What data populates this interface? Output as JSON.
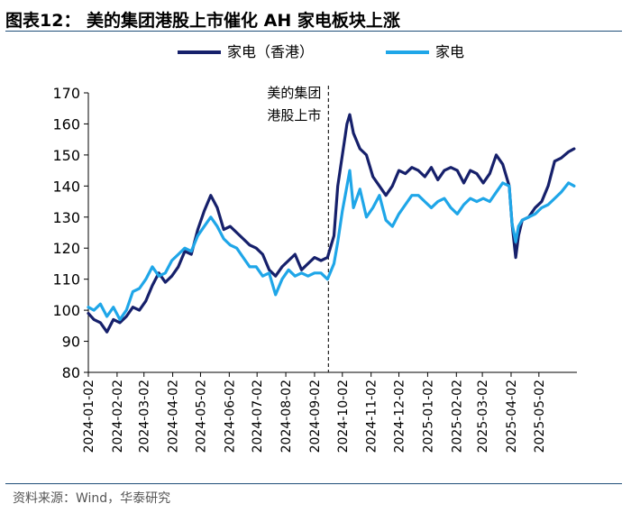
{
  "figure": {
    "title": "图表12：  美的集团港股上市催化 AH 家电板块上涨",
    "source": "资料来源：Wind，华泰研究"
  },
  "chart_data": {
    "type": "line",
    "ylim": [
      80,
      170
    ],
    "yticks": [
      80,
      90,
      100,
      110,
      120,
      130,
      140,
      150,
      160,
      170
    ],
    "xlim": [
      "2024-01-02",
      "2025-06-12"
    ],
    "xticks": [
      "2024-01-02",
      "2024-02-02",
      "2024-03-02",
      "2024-04-02",
      "2024-05-02",
      "2024-06-02",
      "2024-07-02",
      "2024-08-02",
      "2024-09-02",
      "2024-10-02",
      "2024-11-02",
      "2024-12-02",
      "2025-01-02",
      "2025-02-02",
      "2025-03-02",
      "2025-04-02",
      "2025-05-02"
    ],
    "legend_position": "top",
    "grid": false,
    "annotation": {
      "x": "2024-09-17",
      "lines": [
        "美的集团",
        "港股上市"
      ]
    },
    "series": [
      {
        "name": "家电（香港）",
        "color": "#16206b",
        "points": [
          [
            "2024-01-02",
            99
          ],
          [
            "2024-01-08",
            97
          ],
          [
            "2024-01-15",
            96
          ],
          [
            "2024-01-22",
            93
          ],
          [
            "2024-01-29",
            97
          ],
          [
            "2024-02-05",
            96
          ],
          [
            "2024-02-12",
            98
          ],
          [
            "2024-02-19",
            101
          ],
          [
            "2024-02-26",
            100
          ],
          [
            "2024-03-04",
            103
          ],
          [
            "2024-03-11",
            108
          ],
          [
            "2024-03-18",
            112
          ],
          [
            "2024-03-25",
            109
          ],
          [
            "2024-04-01",
            111
          ],
          [
            "2024-04-08",
            114
          ],
          [
            "2024-04-15",
            119
          ],
          [
            "2024-04-22",
            118
          ],
          [
            "2024-04-29",
            126
          ],
          [
            "2024-05-06",
            132
          ],
          [
            "2024-05-13",
            137
          ],
          [
            "2024-05-20",
            133
          ],
          [
            "2024-05-27",
            126
          ],
          [
            "2024-06-03",
            127
          ],
          [
            "2024-06-10",
            125
          ],
          [
            "2024-06-17",
            123
          ],
          [
            "2024-06-24",
            121
          ],
          [
            "2024-07-01",
            120
          ],
          [
            "2024-07-08",
            118
          ],
          [
            "2024-07-15",
            113
          ],
          [
            "2024-07-22",
            111
          ],
          [
            "2024-07-29",
            114
          ],
          [
            "2024-08-05",
            116
          ],
          [
            "2024-08-12",
            118
          ],
          [
            "2024-08-19",
            113
          ],
          [
            "2024-08-26",
            115
          ],
          [
            "2024-09-02",
            117
          ],
          [
            "2024-09-09",
            116
          ],
          [
            "2024-09-16",
            117
          ],
          [
            "2024-09-23",
            124
          ],
          [
            "2024-09-27",
            140
          ],
          [
            "2024-10-02",
            150
          ],
          [
            "2024-10-07",
            160
          ],
          [
            "2024-10-10",
            163
          ],
          [
            "2024-10-14",
            157
          ],
          [
            "2024-10-21",
            152
          ],
          [
            "2024-10-28",
            150
          ],
          [
            "2024-11-04",
            143
          ],
          [
            "2024-11-11",
            140
          ],
          [
            "2024-11-18",
            137
          ],
          [
            "2024-11-25",
            140
          ],
          [
            "2024-12-02",
            145
          ],
          [
            "2024-12-09",
            144
          ],
          [
            "2024-12-16",
            146
          ],
          [
            "2024-12-23",
            145
          ],
          [
            "2024-12-30",
            143
          ],
          [
            "2025-01-06",
            146
          ],
          [
            "2025-01-13",
            142
          ],
          [
            "2025-01-20",
            145
          ],
          [
            "2025-01-27",
            146
          ],
          [
            "2025-02-03",
            145
          ],
          [
            "2025-02-10",
            141
          ],
          [
            "2025-02-17",
            145
          ],
          [
            "2025-02-24",
            144
          ],
          [
            "2025-03-03",
            141
          ],
          [
            "2025-03-10",
            144
          ],
          [
            "2025-03-17",
            150
          ],
          [
            "2025-03-24",
            147
          ],
          [
            "2025-03-31",
            140
          ],
          [
            "2025-04-03",
            128
          ],
          [
            "2025-04-07",
            117
          ],
          [
            "2025-04-10",
            124
          ],
          [
            "2025-04-14",
            129
          ],
          [
            "2025-04-21",
            130
          ],
          [
            "2025-04-28",
            133
          ],
          [
            "2025-05-05",
            135
          ],
          [
            "2025-05-12",
            140
          ],
          [
            "2025-05-19",
            148
          ],
          [
            "2025-05-26",
            149
          ],
          [
            "2025-06-03",
            151
          ],
          [
            "2025-06-09",
            152
          ]
        ]
      },
      {
        "name": "家电",
        "color": "#1fa6e8",
        "points": [
          [
            "2024-01-02",
            101
          ],
          [
            "2024-01-08",
            100
          ],
          [
            "2024-01-15",
            102
          ],
          [
            "2024-01-22",
            98
          ],
          [
            "2024-01-29",
            101
          ],
          [
            "2024-02-05",
            97
          ],
          [
            "2024-02-12",
            100
          ],
          [
            "2024-02-19",
            106
          ],
          [
            "2024-02-26",
            107
          ],
          [
            "2024-03-04",
            110
          ],
          [
            "2024-03-11",
            114
          ],
          [
            "2024-03-18",
            111
          ],
          [
            "2024-03-25",
            112
          ],
          [
            "2024-04-01",
            116
          ],
          [
            "2024-04-08",
            118
          ],
          [
            "2024-04-15",
            120
          ],
          [
            "2024-04-22",
            119
          ],
          [
            "2024-04-29",
            124
          ],
          [
            "2024-05-06",
            127
          ],
          [
            "2024-05-13",
            130
          ],
          [
            "2024-05-20",
            127
          ],
          [
            "2024-05-27",
            123
          ],
          [
            "2024-06-03",
            121
          ],
          [
            "2024-06-10",
            120
          ],
          [
            "2024-06-17",
            117
          ],
          [
            "2024-06-24",
            114
          ],
          [
            "2024-07-01",
            114
          ],
          [
            "2024-07-08",
            111
          ],
          [
            "2024-07-15",
            112
          ],
          [
            "2024-07-22",
            105
          ],
          [
            "2024-07-29",
            110
          ],
          [
            "2024-08-05",
            113
          ],
          [
            "2024-08-12",
            111
          ],
          [
            "2024-08-19",
            112
          ],
          [
            "2024-08-26",
            111
          ],
          [
            "2024-09-02",
            112
          ],
          [
            "2024-09-09",
            112
          ],
          [
            "2024-09-16",
            110
          ],
          [
            "2024-09-23",
            115
          ],
          [
            "2024-09-27",
            122
          ],
          [
            "2024-10-02",
            132
          ],
          [
            "2024-10-07",
            140
          ],
          [
            "2024-10-10",
            145
          ],
          [
            "2024-10-14",
            133
          ],
          [
            "2024-10-21",
            139
          ],
          [
            "2024-10-28",
            130
          ],
          [
            "2024-11-04",
            133
          ],
          [
            "2024-11-11",
            137
          ],
          [
            "2024-11-18",
            129
          ],
          [
            "2024-11-25",
            127
          ],
          [
            "2024-12-02",
            131
          ],
          [
            "2024-12-09",
            134
          ],
          [
            "2024-12-16",
            137
          ],
          [
            "2024-12-23",
            137
          ],
          [
            "2024-12-30",
            135
          ],
          [
            "2025-01-06",
            133
          ],
          [
            "2025-01-13",
            135
          ],
          [
            "2025-01-20",
            136
          ],
          [
            "2025-01-27",
            133
          ],
          [
            "2025-02-03",
            131
          ],
          [
            "2025-02-10",
            134
          ],
          [
            "2025-02-17",
            136
          ],
          [
            "2025-02-24",
            135
          ],
          [
            "2025-03-03",
            136
          ],
          [
            "2025-03-10",
            135
          ],
          [
            "2025-03-17",
            138
          ],
          [
            "2025-03-24",
            141
          ],
          [
            "2025-03-31",
            140
          ],
          [
            "2025-04-03",
            128
          ],
          [
            "2025-04-07",
            122
          ],
          [
            "2025-04-10",
            127
          ],
          [
            "2025-04-14",
            129
          ],
          [
            "2025-04-21",
            130
          ],
          [
            "2025-04-28",
            131
          ],
          [
            "2025-05-05",
            133
          ],
          [
            "2025-05-12",
            134
          ],
          [
            "2025-05-19",
            136
          ],
          [
            "2025-05-26",
            138
          ],
          [
            "2025-06-03",
            141
          ],
          [
            "2025-06-09",
            140
          ]
        ]
      }
    ]
  }
}
